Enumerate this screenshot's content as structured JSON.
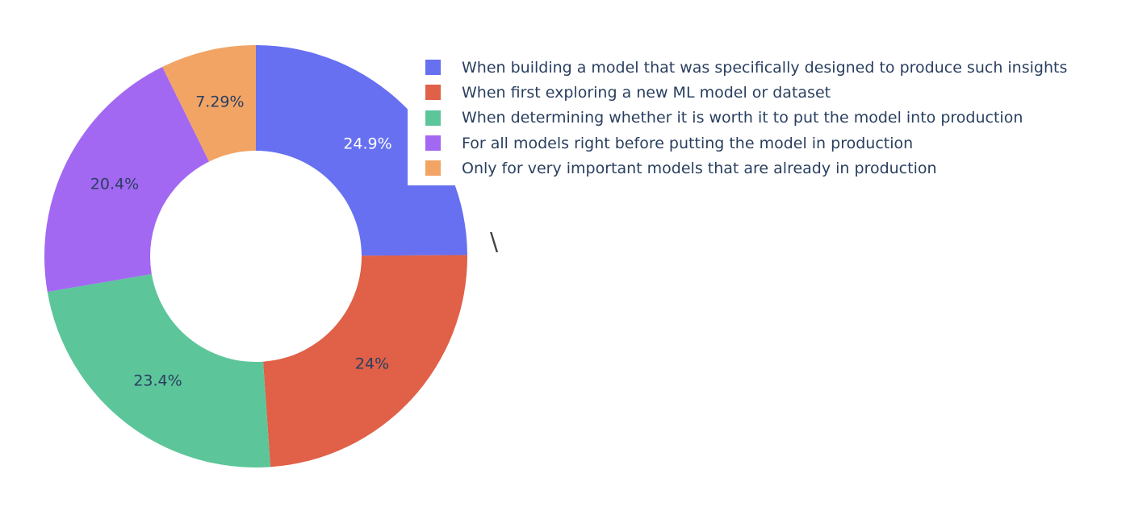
{
  "chart_data": {
    "type": "pie",
    "hole": 0.5,
    "sort": "descending",
    "direction": "clockwise",
    "labels": [
      "When building a model that was specifically designed to produce such insights",
      "When first exploring a new ML model or dataset",
      "When determining whether it is worth it to put the model into production",
      "For all models right before putting the model in production",
      "Only for very important models that are already in production"
    ],
    "values": [
      24.9,
      24.0,
      23.4,
      20.4,
      7.29
    ],
    "slice_labels": [
      "24.9%",
      "24%",
      "23.4%",
      "20.4%",
      "7.29%"
    ],
    "colors": [
      "#636efa",
      "#EF553B",
      "#00cc96",
      "#ab63fa",
      "#FFA15A"
    ],
    "slice_colors": [
      "#6670f0",
      "#e06048",
      "#5cc69a",
      "#a268f2",
      "#f2a465"
    ],
    "label_colors": [
      "#ffffff",
      "#2a3f5f",
      "#2a3f5f",
      "#2a3f5f",
      "#2a3f5f"
    ],
    "legend_position": "top-right",
    "title": "",
    "stray_text": "\\"
  }
}
